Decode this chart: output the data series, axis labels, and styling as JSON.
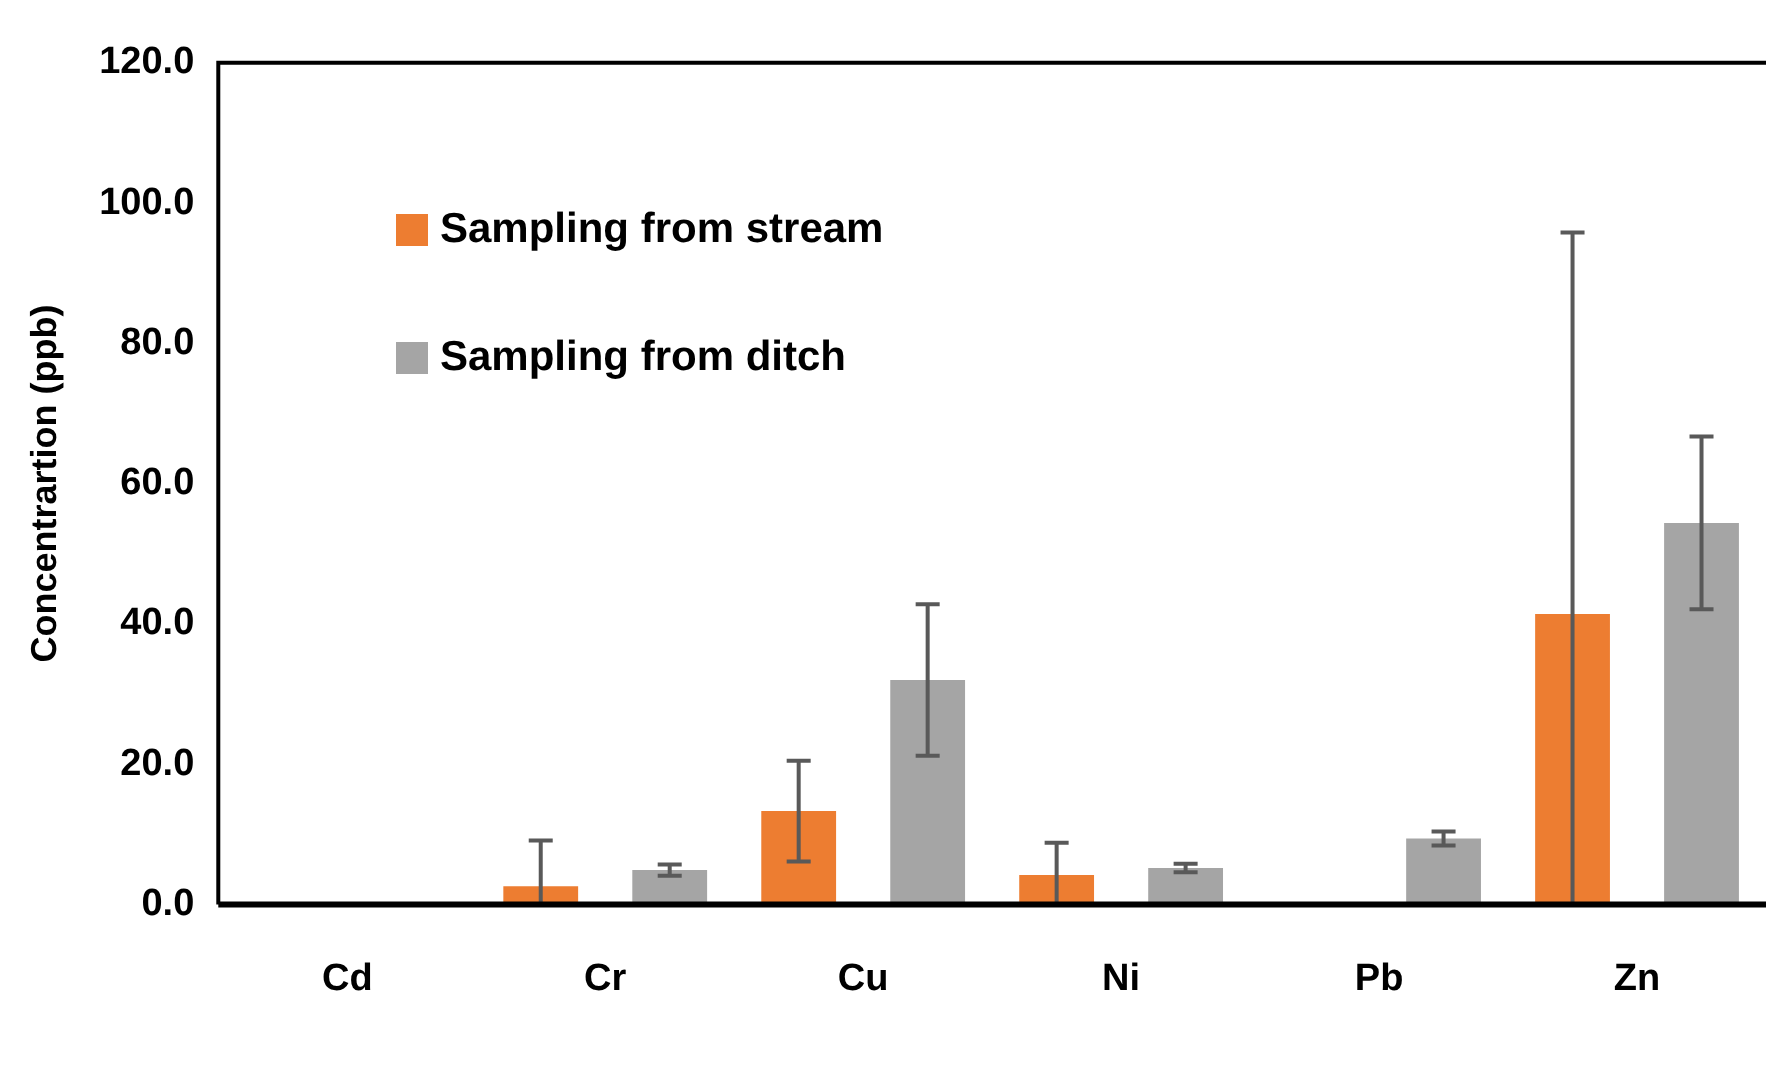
{
  "chart_data": {
    "type": "bar",
    "ylabel": "Concentrartion (ppb)",
    "categories": [
      "Cd",
      "Cr",
      "Cu",
      "Ni",
      "Pb",
      "Zn"
    ],
    "series": [
      {
        "name": "Sampling from stream",
        "color": "#ed7d31",
        "values": [
          0,
          2.6,
          13.3,
          4.2,
          0,
          41.4
        ],
        "errors": [
          null,
          [
            0,
            9.1
          ],
          7.2,
          [
            0,
            8.8
          ],
          null,
          [
            0,
            95.8
          ]
        ]
      },
      {
        "name": "Sampling from ditch",
        "color": "#a5a5a5",
        "values": [
          0,
          4.9,
          32,
          5.2,
          9.4,
          54.4
        ],
        "errors": [
          null,
          0.8,
          10.8,
          0.6,
          1.0,
          12.3
        ]
      }
    ],
    "ylim": [
      0,
      120
    ],
    "yticks": [
      {
        "value": 0,
        "label": "0.0"
      },
      {
        "value": 20,
        "label": "20.0"
      },
      {
        "value": 40,
        "label": "40.0"
      },
      {
        "value": 60,
        "label": "60.0"
      },
      {
        "value": 80,
        "label": "80.0"
      },
      {
        "value": 100,
        "label": "100.0"
      },
      {
        "value": 120,
        "label": "120.0"
      }
    ],
    "grid": false,
    "legend": "top left"
  }
}
